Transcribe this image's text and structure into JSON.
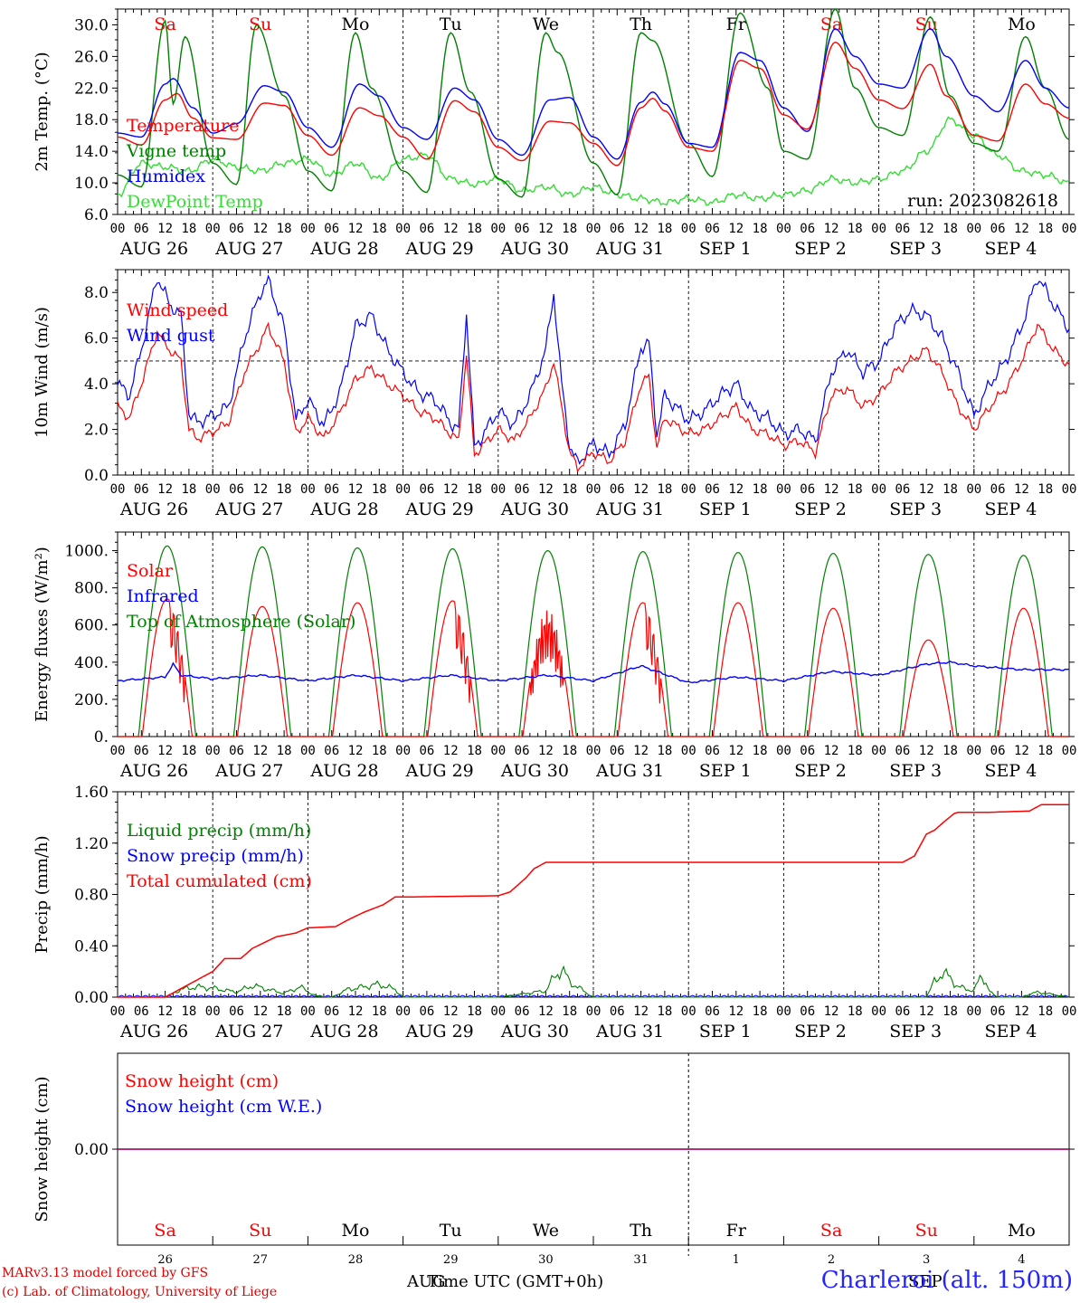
{
  "credits": {
    "line1": "MARv3.13 model forced by GFS",
    "line2": "(c) Lab. of Climatology, University of Liege"
  },
  "station": "Charleroi (alt. 150m)",
  "xaxis_title": "Time UTC (GMT+0h)",
  "footer_months": {
    "aug": "AUG",
    "sep": "SEP"
  },
  "colors": {
    "red": "#ff0000",
    "blue": "#0000ff",
    "green": "#008000",
    "lightgreen": "#33dd33",
    "purple": "#7f007f"
  },
  "chart_data": [
    {
      "type": "line",
      "title": "",
      "ylabel": "2m Temp. (°C)",
      "ylim": [
        6,
        32
      ],
      "yticks": [
        "6.0",
        "10.0",
        "14.0",
        "18.0",
        "22.0",
        "26.0",
        "30.0"
      ],
      "annotation": "run: 2023082618",
      "days": [
        "Sa",
        "Su",
        "Mo",
        "Tu",
        "We",
        "Th",
        "Fr",
        "Sa",
        "Su",
        "Mo"
      ],
      "dates": [
        "AUG 26",
        "AUG 27",
        "AUG 28",
        "AUG 29",
        "AUG 30",
        "AUG 31",
        "SEP 1",
        "SEP 2",
        "SEP 3",
        "SEP 4"
      ],
      "hour_ticks": [
        "00",
        "06",
        "12",
        "18"
      ],
      "x_unit": "hours since 2023-08-26 00 UTC",
      "series": [
        {
          "name": "Temperature",
          "color": "#ff0000",
          "x": [
            0,
            6,
            12,
            15,
            19,
            24,
            30,
            37,
            42,
            48,
            54,
            61,
            66,
            72,
            78,
            85,
            90,
            96,
            102,
            109,
            114,
            120,
            126,
            132,
            135,
            138,
            144,
            150,
            157,
            162,
            168,
            174,
            181,
            186,
            192,
            198,
            205,
            209,
            216,
            222,
            229,
            234,
            240
          ],
          "values": [
            15.8,
            14.8,
            20.5,
            21.3,
            18.2,
            15.7,
            15.5,
            20.1,
            19.8,
            16.0,
            13.5,
            19.5,
            18.5,
            15.8,
            13.0,
            20.4,
            19.0,
            14.5,
            12.8,
            17.8,
            17.6,
            15.0,
            12.2,
            19.5,
            20.7,
            19.1,
            14.5,
            14.0,
            25.5,
            24.5,
            18.6,
            16.8,
            27.8,
            24.5,
            20.5,
            19.4,
            25.0,
            21.0,
            16.0,
            15.3,
            22.5,
            20.0,
            18.2
          ]
        },
        {
          "name": "Vigne temp",
          "color": "#008000",
          "x": [
            0,
            6,
            12,
            14,
            17,
            24,
            30,
            35,
            42,
            48,
            54,
            60,
            64,
            72,
            78,
            84,
            89,
            96,
            102,
            108,
            111,
            120,
            126,
            132,
            135,
            144,
            150,
            157,
            164,
            168,
            174,
            181,
            186,
            192,
            198,
            205,
            210,
            216,
            222,
            229,
            234,
            240
          ],
          "values": [
            11.0,
            9.5,
            30.5,
            20.0,
            28.5,
            12.5,
            9.8,
            30.0,
            21.0,
            11.5,
            9.0,
            29.0,
            22.0,
            11.5,
            8.8,
            29.0,
            21.5,
            10.5,
            8.2,
            29.0,
            26.5,
            12.5,
            8.5,
            29.0,
            28.0,
            15.0,
            10.8,
            31.5,
            22.0,
            14.0,
            13.0,
            32.0,
            22.0,
            17.0,
            16.0,
            31.0,
            21.0,
            15.0,
            14.0,
            28.5,
            22.0,
            15.5
          ]
        },
        {
          "name": "Humidex",
          "color": "#0000ff",
          "x": [
            0,
            6,
            12,
            14,
            19,
            24,
            30,
            37,
            42,
            48,
            54,
            61,
            66,
            72,
            78,
            85,
            90,
            96,
            102,
            109,
            114,
            120,
            126,
            132,
            135,
            138,
            144,
            150,
            157,
            162,
            168,
            174,
            181,
            186,
            192,
            198,
            205,
            209,
            216,
            222,
            229,
            234,
            240
          ],
          "values": [
            16.3,
            15.8,
            22.5,
            23.2,
            19.5,
            16.3,
            17.5,
            22.3,
            21.5,
            17.0,
            14.5,
            22.5,
            21.0,
            17.0,
            15.5,
            22.0,
            20.5,
            15.5,
            13.5,
            20.5,
            20.8,
            15.8,
            13.0,
            20.2,
            21.5,
            20.0,
            15.0,
            14.5,
            26.5,
            25.5,
            19.5,
            16.5,
            29.5,
            26.0,
            22.5,
            22.0,
            29.5,
            26.0,
            21.0,
            19.0,
            25.5,
            22.0,
            19.5
          ]
        },
        {
          "name": "DewPoint Temp",
          "color": "#33dd33",
          "x": [
            0,
            6,
            12,
            18,
            24,
            30,
            36,
            42,
            48,
            54,
            60,
            66,
            72,
            78,
            84,
            90,
            96,
            102,
            108,
            114,
            120,
            126,
            132,
            138,
            144,
            150,
            156,
            162,
            168,
            174,
            180,
            186,
            192,
            198,
            204,
            210,
            216,
            222,
            228,
            234,
            240
          ],
          "values": [
            8.5,
            12.5,
            12.0,
            11.5,
            13.0,
            12.0,
            11.5,
            12.5,
            13.0,
            11.0,
            12.5,
            10.5,
            13.0,
            13.5,
            10.5,
            9.8,
            10.5,
            9.0,
            9.5,
            8.5,
            9.5,
            8.5,
            8.0,
            7.5,
            8.0,
            7.5,
            8.5,
            8.0,
            8.5,
            9.0,
            10.5,
            10.0,
            10.5,
            11.5,
            14.0,
            18.0,
            16.0,
            13.5,
            11.5,
            11.0,
            10.0
          ]
        }
      ]
    },
    {
      "type": "line",
      "title": "",
      "ylabel": "10m Wind (m/s)",
      "ylim": [
        0,
        9
      ],
      "yticks": [
        "0.0",
        "2.0",
        "4.0",
        "6.0",
        "8.0"
      ],
      "reference_line": 5.0,
      "dates": [
        "AUG 26",
        "AUG 27",
        "AUG 28",
        "AUG 29",
        "AUG 30",
        "AUG 31",
        "SEP 1",
        "SEP 2",
        "SEP 3",
        "SEP 4"
      ],
      "hour_ticks": [
        "00",
        "06",
        "12",
        "18"
      ],
      "x_unit": "hours since 2023-08-26 00 UTC",
      "series": [
        {
          "name": "Wind speed",
          "color": "#ff0000",
          "x": [
            0,
            3,
            6,
            10,
            13,
            16,
            18,
            20,
            24,
            28,
            32,
            36,
            38,
            42,
            45,
            48,
            52,
            56,
            60,
            64,
            68,
            72,
            76,
            80,
            84,
            86,
            88,
            90,
            96,
            100,
            104,
            108,
            110,
            112,
            114,
            116,
            120,
            124,
            128,
            132,
            134,
            136,
            138,
            144,
            148,
            152,
            156,
            160,
            164,
            168,
            172,
            176,
            180,
            184,
            188,
            192,
            196,
            200,
            204,
            208,
            212,
            216,
            220,
            224,
            228,
            232,
            236,
            240
          ],
          "values": [
            3.0,
            2.5,
            4.0,
            6.3,
            5.5,
            5.0,
            2.0,
            1.6,
            1.9,
            2.3,
            4.5,
            5.8,
            6.5,
            5.0,
            1.8,
            2.5,
            1.6,
            2.7,
            4.2,
            4.7,
            4.0,
            3.5,
            2.8,
            2.5,
            1.8,
            1.5,
            5.3,
            0.9,
            2.0,
            1.5,
            2.5,
            3.8,
            5.0,
            3.0,
            1.0,
            0.3,
            1.0,
            0.6,
            1.5,
            4.0,
            4.3,
            1.2,
            2.5,
            1.8,
            2.0,
            2.5,
            3.0,
            2.0,
            1.8,
            1.3,
            1.5,
            1.0,
            3.5,
            3.8,
            3.0,
            3.5,
            4.5,
            5.0,
            5.5,
            4.5,
            3.0,
            2.0,
            3.0,
            3.8,
            5.0,
            6.6,
            5.5,
            4.8
          ]
        },
        {
          "name": "Wind gust",
          "color": "#0000ff",
          "x": [
            0,
            3,
            6,
            10,
            13,
            16,
            18,
            20,
            24,
            28,
            32,
            36,
            38,
            42,
            45,
            48,
            52,
            56,
            60,
            64,
            68,
            72,
            76,
            80,
            84,
            86,
            88,
            90,
            96,
            100,
            104,
            108,
            110,
            112,
            114,
            116,
            120,
            124,
            128,
            132,
            134,
            136,
            138,
            144,
            148,
            152,
            156,
            160,
            164,
            168,
            172,
            176,
            180,
            184,
            188,
            192,
            196,
            200,
            204,
            208,
            212,
            216,
            220,
            224,
            228,
            232,
            236,
            240
          ],
          "values": [
            4.0,
            3.5,
            5.5,
            8.7,
            7.5,
            7.0,
            2.7,
            2.3,
            2.6,
            3.0,
            6.0,
            8.0,
            8.5,
            6.5,
            2.4,
            3.3,
            2.2,
            3.6,
            6.5,
            7.0,
            5.5,
            4.5,
            3.6,
            3.3,
            2.3,
            2.0,
            7.1,
            1.2,
            2.8,
            2.2,
            3.5,
            5.5,
            8.0,
            4.0,
            1.3,
            0.5,
            1.4,
            0.9,
            2.2,
            5.6,
            5.8,
            1.8,
            3.5,
            2.4,
            2.8,
            3.5,
            4.0,
            2.8,
            2.5,
            1.8,
            2.0,
            1.5,
            4.5,
            5.5,
            4.5,
            5.0,
            6.5,
            7.2,
            7.0,
            6.0,
            4.5,
            2.6,
            4.0,
            5.0,
            6.5,
            8.7,
            7.5,
            6.4
          ]
        }
      ]
    },
    {
      "type": "line",
      "title": "",
      "ylabel": "Energy fluxes (W/m²)",
      "ylim": [
        0,
        1100
      ],
      "yticks": [
        "0.",
        "200.",
        "400.",
        "600.",
        "800.",
        "1000."
      ],
      "dates": [
        "AUG 26",
        "AUG 27",
        "AUG 28",
        "AUG 29",
        "AUG 30",
        "AUG 31",
        "SEP 1",
        "SEP 2",
        "SEP 3",
        "SEP 4"
      ],
      "hour_ticks": [
        "00",
        "06",
        "12",
        "18"
      ],
      "x_unit": "hours since 2023-08-26 00 UTC",
      "series": [
        {
          "name": "Solar",
          "color": "#ff0000",
          "daily_peak": [
            740,
            700,
            720,
            730,
            680,
            720,
            720,
            690,
            520,
            690
          ]
        },
        {
          "name": "Infrared",
          "color": "#0000ff",
          "x": [
            0,
            12,
            14,
            16,
            24,
            36,
            48,
            60,
            72,
            84,
            96,
            108,
            120,
            132,
            144,
            156,
            168,
            180,
            192,
            204,
            210,
            216,
            228,
            240
          ],
          "values": [
            300,
            320,
            390,
            330,
            310,
            330,
            300,
            330,
            300,
            330,
            300,
            330,
            300,
            380,
            290,
            320,
            300,
            350,
            330,
            390,
            400,
            380,
            360,
            360
          ]
        },
        {
          "name": "Top of Atmosphere (Solar)",
          "color": "#008000",
          "daily_peak": [
            1025,
            1020,
            1015,
            1010,
            1000,
            995,
            990,
            985,
            980,
            975
          ]
        }
      ]
    },
    {
      "type": "line",
      "title": "",
      "ylabel": "Precip (mm/h)",
      "ylim": [
        0,
        1.6
      ],
      "yticks": [
        "0.00",
        "0.40",
        "0.80",
        "1.20",
        "1.60"
      ],
      "dates": [
        "AUG 26",
        "AUG 27",
        "AUG 28",
        "AUG 29",
        "AUG 30",
        "AUG 31",
        "SEP 1",
        "SEP 2",
        "SEP 3",
        "SEP 4"
      ],
      "hour_ticks": [
        "00",
        "06",
        "12",
        "18"
      ],
      "x_unit": "hours since 2023-08-26 00 UTC",
      "series": [
        {
          "name": "Liquid precip (mm/h)",
          "color": "#008000",
          "x": [
            0,
            12,
            16,
            20,
            24,
            30,
            34,
            38,
            42,
            46,
            50,
            54,
            58,
            62,
            66,
            70,
            72,
            96,
            108,
            110,
            112,
            114,
            118,
            120,
            204,
            206,
            208,
            210,
            212,
            216,
            218,
            220,
            222,
            228,
            232,
            236,
            240
          ],
          "values": [
            0,
            0,
            0.06,
            0.08,
            0.07,
            0.04,
            0.09,
            0.06,
            0.03,
            0.08,
            0.01,
            0,
            0.06,
            0.08,
            0.1,
            0.06,
            0,
            0,
            0.05,
            0.15,
            0.22,
            0.12,
            0.04,
            0,
            0,
            0.12,
            0.19,
            0.15,
            0.08,
            0.05,
            0.18,
            0.04,
            0,
            0,
            0.04,
            0.02,
            0
          ]
        },
        {
          "name": "Snow precip (mm/h)",
          "color": "#0000ff",
          "x": [
            0,
            240
          ],
          "values": [
            0,
            0
          ]
        },
        {
          "name": "Total cumulated (cm)",
          "color": "#ff0000",
          "x": [
            0,
            12,
            18,
            24,
            27,
            31,
            34,
            40,
            45,
            48,
            55,
            58,
            62,
            67,
            70,
            72,
            96,
            99,
            103,
            105,
            108,
            120,
            144,
            168,
            198,
            201,
            204,
            206,
            209,
            211,
            212,
            220,
            230,
            233,
            240
          ],
          "values": [
            0,
            0,
            0.1,
            0.2,
            0.3,
            0.3,
            0.38,
            0.47,
            0.5,
            0.54,
            0.55,
            0.6,
            0.66,
            0.72,
            0.78,
            0.78,
            0.79,
            0.82,
            0.93,
            1.0,
            1.05,
            1.05,
            1.05,
            1.05,
            1.05,
            1.1,
            1.27,
            1.3,
            1.38,
            1.43,
            1.44,
            1.44,
            1.45,
            1.5,
            1.5
          ]
        }
      ]
    },
    {
      "type": "line",
      "title": "",
      "ylabel": "Snow height (cm)",
      "ylim": [
        -1,
        1
      ],
      "yticks": [
        "0.00"
      ],
      "days": [
        "Sa",
        "Su",
        "Mo",
        "Tu",
        "We",
        "Th",
        "Fr",
        "Sa",
        "Su",
        "Mo"
      ],
      "day_numbers": [
        "26",
        "27",
        "28",
        "29",
        "30",
        "31",
        "1",
        "2",
        "3",
        "4"
      ],
      "x_unit": "hours since 2023-08-26 00 UTC",
      "series": [
        {
          "name": "Snow height (cm)",
          "color": "#ff0000",
          "x": [
            0,
            240
          ],
          "values": [
            0,
            0
          ]
        },
        {
          "name": "Snow height (cm W.E.)",
          "color": "#0000ff",
          "x": [
            0,
            240
          ],
          "values": [
            0,
            0
          ]
        }
      ]
    }
  ]
}
